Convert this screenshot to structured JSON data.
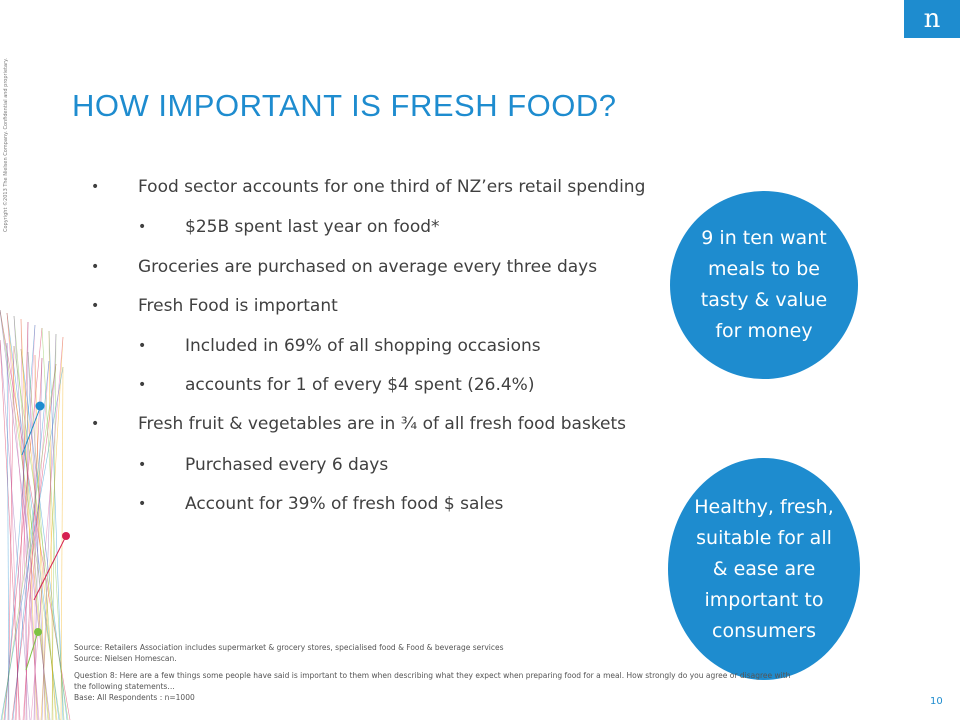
{
  "header": {
    "logo_text": "n",
    "copyright": "Copyright ©2013 The Nielsen Company. Confidential and proprietary."
  },
  "slide": {
    "title": "HOW IMPORTANT IS FRESH FOOD?",
    "bullets": [
      {
        "text": "Food sector accounts for one third of NZ’ers retail spending",
        "level": 1
      },
      {
        "text": "$25B spent last year  on food*",
        "level": 2
      },
      {
        "text": "Groceries are purchased on average every three days",
        "level": 1
      },
      {
        "text": "Fresh Food  is important",
        "level": 1
      },
      {
        "text": "Included in 69% of all shopping occasions",
        "level": 2
      },
      {
        "text": "accounts for 1 of every $4 spent (26.4%)",
        "level": 2
      },
      {
        "text": "Fresh fruit & vegetables are in ¾ of all fresh food baskets",
        "level": 1
      },
      {
        "text": " Purchased every 6 days",
        "level": 2
      },
      {
        "text": "Account for 39% of fresh food $ sales",
        "level": 2
      }
    ],
    "bullet_glyph": "•",
    "circles": [
      {
        "lines": [
          "9 in ten want",
          "meals to be",
          "tasty & value",
          "for money"
        ]
      },
      {
        "lines": [
          "Healthy, fresh,",
          "suitable for all",
          "& ease are",
          "important to",
          "consumers"
        ]
      }
    ],
    "footnotes": {
      "source1": "Source: Retailers Association includes supermarket & grocery stores, specialised food & Food & beverage services",
      "source2": "Source: Nielsen Homescan.",
      "question_line1": "Question 8: Here are a few things some people have said is important to them when describing what they expect when preparing food for a meal. How strongly do you agree or disagree with",
      "question_line2": "the following statements…",
      "base": "Base: All Respondents : n=1000"
    },
    "page_number": "10"
  },
  "colors": {
    "accent": "#1e8ccf",
    "body_text": "#404040",
    "deco_dot_blue": "#1e8ccf",
    "deco_dot_red": "#d6204f",
    "deco_dot_green": "#7dc242"
  }
}
